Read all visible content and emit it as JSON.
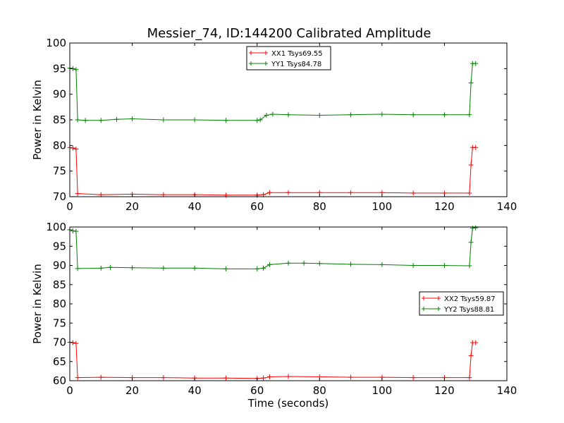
{
  "title": "Messier_74, ID:144200 Calibrated Amplitude",
  "chart_data": [
    {
      "type": "line",
      "title": "Messier_74, ID:144200 Calibrated Amplitude",
      "xlabel": "",
      "ylabel": "Power in Kelvin",
      "xlim": [
        0,
        140
      ],
      "ylim": [
        70,
        100
      ],
      "xticks": [
        0,
        20,
        40,
        60,
        80,
        100,
        120,
        140
      ],
      "yticks": [
        70,
        75,
        80,
        85,
        90,
        95,
        100
      ],
      "legend_position": "top-center",
      "series": [
        {
          "name": "XX1 Tsys69.55",
          "color": "#ff0000",
          "marker": "+",
          "points": [
            [
              0,
              79.6
            ],
            [
              1,
              79.5
            ],
            [
              2,
              79.3
            ],
            [
              2.5,
              70.6
            ],
            [
              10,
              70.4
            ],
            [
              20,
              70.5
            ],
            [
              30,
              70.4
            ],
            [
              40,
              70.4
            ],
            [
              50,
              70.3
            ],
            [
              60,
              70.3
            ],
            [
              62,
              70.4
            ],
            [
              64,
              70.8
            ],
            [
              70,
              70.8
            ],
            [
              80,
              70.8
            ],
            [
              90,
              70.8
            ],
            [
              100,
              70.8
            ],
            [
              110,
              70.7
            ],
            [
              120,
              70.7
            ],
            [
              128,
              70.7
            ],
            [
              128.5,
              76.2
            ],
            [
              129,
              79.6
            ],
            [
              130,
              79.6
            ]
          ]
        },
        {
          "name": "YY1 Tsys84.78",
          "color": "#008000",
          "marker": "+",
          "points": [
            [
              0,
              95.1
            ],
            [
              1,
              95.0
            ],
            [
              2,
              94.8
            ],
            [
              2.5,
              85.0
            ],
            [
              5,
              84.9
            ],
            [
              10,
              84.9
            ],
            [
              15,
              85.1
            ],
            [
              20,
              85.2
            ],
            [
              30,
              85.0
            ],
            [
              40,
              85.0
            ],
            [
              50,
              84.9
            ],
            [
              60,
              84.9
            ],
            [
              61,
              85.0
            ],
            [
              63,
              85.9
            ],
            [
              65,
              86.1
            ],
            [
              70,
              86.0
            ],
            [
              80,
              85.9
            ],
            [
              90,
              86.0
            ],
            [
              100,
              86.1
            ],
            [
              110,
              86.0
            ],
            [
              120,
              86.0
            ],
            [
              128,
              86.0
            ],
            [
              128.5,
              92.2
            ],
            [
              129,
              96.0
            ],
            [
              130,
              96.0
            ]
          ]
        }
      ]
    },
    {
      "type": "line",
      "title": "",
      "xlabel": "Time (seconds)",
      "ylabel": "Power in Kelvin",
      "xlim": [
        0,
        140
      ],
      "ylim": [
        60,
        100
      ],
      "xticks": [
        0,
        20,
        40,
        60,
        80,
        100,
        120,
        140
      ],
      "yticks": [
        60,
        65,
        70,
        75,
        80,
        85,
        90,
        95,
        100
      ],
      "legend_position": "center-right",
      "series": [
        {
          "name": "XX2 Tsys59.87",
          "color": "#ff0000",
          "marker": "+",
          "points": [
            [
              0,
              70.0
            ],
            [
              1,
              69.9
            ],
            [
              2,
              69.7
            ],
            [
              2.5,
              60.8
            ],
            [
              10,
              60.9
            ],
            [
              20,
              60.8
            ],
            [
              30,
              60.8
            ],
            [
              40,
              60.7
            ],
            [
              50,
              60.7
            ],
            [
              60,
              60.6
            ],
            [
              62,
              60.7
            ],
            [
              64,
              61.0
            ],
            [
              70,
              61.1
            ],
            [
              80,
              61.0
            ],
            [
              90,
              60.9
            ],
            [
              100,
              60.9
            ],
            [
              110,
              60.8
            ],
            [
              120,
              60.8
            ],
            [
              128,
              60.8
            ],
            [
              128.5,
              66.5
            ],
            [
              129,
              69.9
            ],
            [
              130,
              69.9
            ]
          ]
        },
        {
          "name": "YY2 Tsys88.81",
          "color": "#008000",
          "marker": "+",
          "points": [
            [
              0,
              99.3
            ],
            [
              1,
              99.0
            ],
            [
              2,
              98.9
            ],
            [
              2.5,
              89.2
            ],
            [
              10,
              89.3
            ],
            [
              13,
              89.5
            ],
            [
              20,
              89.4
            ],
            [
              30,
              89.3
            ],
            [
              40,
              89.3
            ],
            [
              50,
              89.1
            ],
            [
              60,
              89.1
            ],
            [
              62,
              89.3
            ],
            [
              64,
              90.2
            ],
            [
              70,
              90.6
            ],
            [
              75,
              90.6
            ],
            [
              80,
              90.5
            ],
            [
              90,
              90.3
            ],
            [
              100,
              90.2
            ],
            [
              110,
              90.0
            ],
            [
              120,
              90.0
            ],
            [
              128,
              89.9
            ],
            [
              128.5,
              96.0
            ],
            [
              129,
              99.7
            ],
            [
              130,
              99.8
            ]
          ]
        }
      ]
    }
  ]
}
